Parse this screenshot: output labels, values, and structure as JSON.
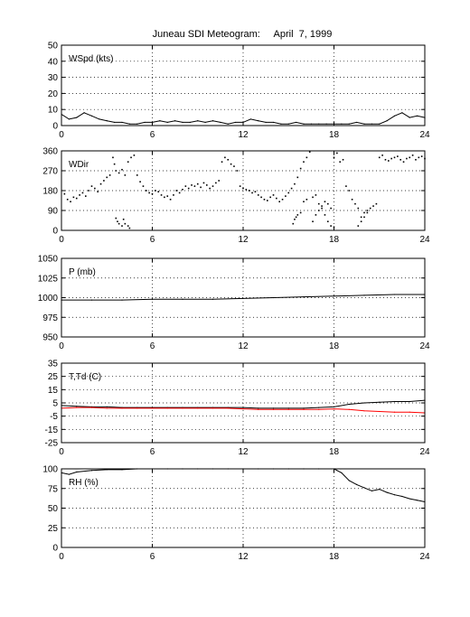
{
  "title": "Juneau SDI Meteogram:     April  7, 1999",
  "colors": {
    "black": "#000000",
    "red": "#ff0000",
    "grid": "#000000"
  },
  "chart_data": [
    {
      "type": "line",
      "panel_label": "WSpd (kts)",
      "xlim": [
        0,
        24
      ],
      "x_ticks": [
        0,
        6,
        12,
        18,
        24
      ],
      "ylim": [
        0,
        50
      ],
      "y_ticks": [
        0,
        10,
        20,
        30,
        40,
        50
      ],
      "grid": true,
      "series": [
        {
          "color": "#000000",
          "style": "line",
          "x": [
            0,
            0.5,
            1,
            1.5,
            2,
            2.5,
            3,
            3.5,
            4,
            4.5,
            5,
            5.5,
            6,
            6.5,
            7,
            7.5,
            8,
            8.5,
            9,
            9.5,
            10,
            10.5,
            11,
            11.5,
            12,
            12.5,
            13,
            13.5,
            14,
            14.5,
            15,
            15.5,
            16,
            16.5,
            17,
            17.5,
            18,
            18.5,
            19,
            19.5,
            20,
            20.5,
            21,
            21.5,
            22,
            22.5,
            23,
            23.5,
            24
          ],
          "y": [
            7,
            4,
            5,
            8,
            6,
            4,
            3,
            2,
            2,
            1,
            1,
            2,
            2,
            3,
            2,
            3,
            2,
            2,
            3,
            2,
            3,
            2,
            1,
            2,
            2,
            4,
            3,
            2,
            2,
            1,
            1,
            2,
            1,
            1,
            1,
            1,
            1,
            1,
            1,
            2,
            1,
            1,
            1,
            3,
            6,
            8,
            5,
            6,
            5
          ]
        }
      ]
    },
    {
      "type": "scatter",
      "panel_label": "WDir",
      "xlim": [
        0,
        24
      ],
      "x_ticks": [
        0,
        6,
        12,
        18,
        24
      ],
      "ylim": [
        0,
        360
      ],
      "y_ticks": [
        0,
        90,
        180,
        270,
        360
      ],
      "grid": true,
      "series": [
        {
          "color": "#000000",
          "style": "dots",
          "x": [
            0.2,
            0.4,
            0.6,
            0.8,
            1,
            1.2,
            1.4,
            1.6,
            1.8,
            2,
            2.2,
            2.4,
            2.6,
            2.8,
            3,
            3.2,
            3.4,
            3.5,
            3.6,
            3.8,
            4,
            4.2,
            4.4,
            4.6,
            4.8,
            5,
            5.2,
            5.4,
            5.6,
            5.8,
            6,
            6.2,
            6.4,
            6.6,
            6.8,
            7,
            7.2,
            7.4,
            7.6,
            7.8,
            8,
            8.2,
            8.4,
            8.6,
            8.8,
            9,
            9.2,
            9.4,
            9.6,
            9.8,
            10,
            10.2,
            10.4,
            10.6,
            10.8,
            11,
            11.2,
            11.4,
            11.6,
            11.8,
            12,
            12.2,
            12.4,
            12.6,
            12.8,
            13,
            13.2,
            13.4,
            13.6,
            13.8,
            14,
            14.2,
            14.4,
            14.6,
            14.8,
            15,
            15.2,
            15.4,
            15.6,
            15.8,
            16,
            16.2,
            16.4,
            16.6,
            16.8,
            17,
            17.2,
            17.4,
            17.6,
            17.8,
            18,
            18.2,
            18.4,
            18.6,
            18.8,
            19,
            19.2,
            19.4,
            19.6,
            19.8,
            20,
            20.2,
            20.4,
            20.6,
            20.8,
            21,
            21.2,
            21.4,
            21.6,
            21.8,
            22,
            22.2,
            22.4,
            22.6,
            22.8,
            23,
            23.2,
            23.4,
            23.6,
            23.8,
            24
          ],
          "y": [
            165,
            140,
            130,
            150,
            145,
            160,
            170,
            155,
            180,
            200,
            190,
            175,
            210,
            225,
            240,
            250,
            330,
            300,
            270,
            260,
            275,
            250,
            310,
            330,
            340,
            250,
            220,
            200,
            180,
            170,
            165,
            180,
            175,
            160,
            150,
            155,
            140,
            160,
            180,
            170,
            185,
            200,
            190,
            205,
            200,
            210,
            195,
            215,
            205,
            190,
            200,
            215,
            225,
            310,
            330,
            320,
            300,
            290,
            270,
            200,
            190,
            185,
            180,
            170,
            175,
            160,
            150,
            140,
            135,
            150,
            160,
            145,
            130,
            140,
            155,
            170,
            190,
            210,
            240,
            280,
            310,
            330,
            355,
            40,
            70,
            90,
            110,
            130,
            120,
            100,
            330,
            350,
            310,
            320,
            200,
            180,
            140,
            120,
            100,
            60,
            80,
            90,
            100,
            110,
            120,
            330,
            340,
            320,
            315,
            325,
            330,
            335,
            320,
            310,
            325,
            330,
            340,
            320,
            330,
            335,
            325
          ]
        },
        {
          "color": "#000000",
          "style": "dots",
          "x": [
            3.6,
            3.7,
            3.8,
            4,
            4.1,
            4.2,
            4.4,
            4.5,
            15.3,
            15.4,
            15.5,
            15.6,
            15.8,
            16,
            16.2,
            16.6,
            16.8,
            17,
            17.2,
            17.4,
            17.6,
            17.8,
            18,
            19.6,
            19.8,
            20,
            20.2
          ],
          "y": [
            55,
            40,
            30,
            20,
            50,
            30,
            20,
            10,
            30,
            50,
            60,
            70,
            80,
            130,
            140,
            150,
            160,
            120,
            100,
            70,
            40,
            20,
            15,
            20,
            40,
            60,
            80
          ]
        }
      ]
    },
    {
      "type": "line",
      "panel_label": "P (mb)",
      "xlim": [
        0,
        24
      ],
      "x_ticks": [
        0,
        6,
        12,
        18,
        24
      ],
      "ylim": [
        950,
        1050
      ],
      "y_ticks": [
        950,
        975,
        1000,
        1025,
        1050
      ],
      "grid": true,
      "series": [
        {
          "color": "#000000",
          "style": "line",
          "x": [
            0,
            2,
            4,
            6,
            8,
            10,
            12,
            14,
            16,
            18,
            20,
            22,
            24
          ],
          "y": [
            997,
            997,
            997,
            998,
            998,
            998,
            999,
            1000,
            1001,
            1002,
            1003,
            1004,
            1004
          ]
        }
      ]
    },
    {
      "type": "line",
      "panel_label": "T,Td (C)",
      "xlim": [
        0,
        24
      ],
      "x_ticks": [
        0,
        6,
        12,
        18,
        24
      ],
      "ylim": [
        -25,
        35
      ],
      "y_ticks": [
        -25,
        -15,
        -5,
        5,
        15,
        25,
        35
      ],
      "grid": true,
      "series": [
        {
          "color": "#000000",
          "style": "line",
          "x": [
            0,
            1,
            2,
            3,
            4,
            5,
            6,
            7,
            8,
            9,
            10,
            11,
            12,
            13,
            14,
            15,
            16,
            17,
            18,
            19,
            20,
            21,
            22,
            23,
            24
          ],
          "y": [
            3,
            2.5,
            2,
            2,
            1.5,
            1.5,
            1.5,
            1.5,
            1.5,
            1.5,
            1.5,
            1.5,
            1.5,
            1,
            1,
            1,
            1,
            1.5,
            2,
            4,
            5,
            5.5,
            6,
            6,
            7
          ]
        },
        {
          "color": "#ff0000",
          "style": "line",
          "x": [
            0,
            1,
            2,
            3,
            4,
            5,
            6,
            7,
            8,
            9,
            10,
            11,
            12,
            13,
            14,
            15,
            16,
            17,
            18,
            19,
            20,
            21,
            22,
            23,
            24
          ],
          "y": [
            1,
            1.5,
            1.5,
            1,
            1,
            1,
            1,
            1,
            1,
            1,
            1,
            1,
            0.5,
            0,
            0,
            0,
            0,
            0,
            0.5,
            0,
            -1,
            -1.5,
            -2,
            -2,
            -2.5
          ]
        }
      ]
    },
    {
      "type": "line",
      "panel_label": "RH (%)",
      "xlim": [
        0,
        24
      ],
      "x_ticks": [
        0,
        6,
        12,
        18,
        24
      ],
      "ylim": [
        0,
        100
      ],
      "y_ticks": [
        0,
        25,
        50,
        75,
        100
      ],
      "grid": true,
      "series": [
        {
          "color": "#000000",
          "style": "line",
          "x": [
            0,
            0.5,
            1,
            2,
            3,
            4,
            5,
            6,
            7,
            8,
            9,
            10,
            11,
            12,
            13,
            14,
            15,
            16,
            17,
            18,
            18.5,
            19,
            19.5,
            20,
            20.5,
            21,
            21.5,
            22,
            22.5,
            23,
            23.5,
            24
          ],
          "y": [
            95,
            93,
            96,
            98,
            99,
            99,
            100,
            100,
            100,
            100,
            100,
            100,
            100,
            100,
            100,
            100,
            100,
            100,
            100,
            100,
            95,
            85,
            80,
            76,
            72,
            74,
            70,
            67,
            65,
            62,
            60,
            58
          ]
        }
      ]
    }
  ]
}
